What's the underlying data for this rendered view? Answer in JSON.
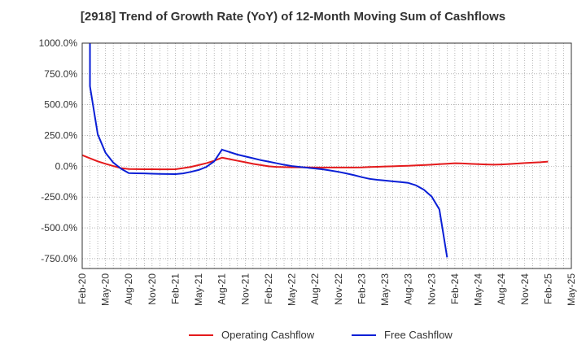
{
  "colors": {
    "operating": "#e41a1c",
    "free": "#0a1fd6",
    "grid": "#888888",
    "axis": "#333333"
  },
  "chart_data": {
    "type": "line",
    "title": "[2918]  Trend of Growth Rate (YoY) of 12-Month Moving Sum of Cashflows",
    "xlabel": "",
    "ylabel": "",
    "x_tick_labels": [
      "Feb-20",
      "May-20",
      "Aug-20",
      "Nov-20",
      "Feb-21",
      "May-21",
      "Aug-21",
      "Nov-21",
      "Feb-22",
      "May-22",
      "Aug-22",
      "Nov-22",
      "Feb-23",
      "May-23",
      "Aug-23",
      "Nov-23",
      "Feb-24",
      "May-24",
      "Aug-24",
      "Nov-24",
      "Feb-25",
      "May-25"
    ],
    "y_tick_labels": [
      "1000.0%",
      "750.0%",
      "500.0%",
      "250.0%",
      "0.0%",
      "-250.0%",
      "-500.0%",
      "-750.0%"
    ],
    "y_ticks": [
      1000,
      750,
      500,
      250,
      0,
      -250,
      -500,
      -750
    ],
    "ylim": [
      -830,
      1000
    ],
    "xlim": [
      "2020-02",
      "2025-05"
    ],
    "grid": true,
    "legend_position": "bottom-center",
    "series": [
      {
        "name": "Operating Cashflow",
        "color_key": "operating",
        "x": [
          "2020-02",
          "2020-03",
          "2020-04",
          "2020-05",
          "2020-06",
          "2020-07",
          "2020-08",
          "2020-09",
          "2020-10",
          "2020-11",
          "2020-12",
          "2021-01",
          "2021-02",
          "2021-03",
          "2021-04",
          "2021-05",
          "2021-06",
          "2021-07",
          "2021-08",
          "2021-09",
          "2021-10",
          "2021-11",
          "2021-12",
          "2022-01",
          "2022-02",
          "2022-03",
          "2022-04",
          "2022-05",
          "2022-06",
          "2022-07",
          "2022-08",
          "2022-09",
          "2022-10",
          "2022-11",
          "2022-12",
          "2023-01",
          "2023-02",
          "2023-03",
          "2023-04",
          "2023-05",
          "2023-06",
          "2023-07",
          "2023-08",
          "2023-09",
          "2023-10",
          "2023-11",
          "2023-12",
          "2024-01",
          "2024-02",
          "2024-03",
          "2024-04",
          "2024-05",
          "2024-06",
          "2024-07",
          "2024-08",
          "2024-09",
          "2024-10",
          "2024-11",
          "2024-12",
          "2025-01",
          "2025-02"
        ],
        "values": [
          90,
          65,
          40,
          20,
          2,
          -15,
          -22,
          -23,
          -24,
          -24,
          -25,
          -25,
          -24,
          -15,
          -5,
          10,
          25,
          45,
          70,
          58,
          45,
          33,
          20,
          10,
          0,
          -5,
          -7,
          -8,
          -8,
          -9,
          -10,
          -10,
          -10,
          -10,
          -10,
          -10,
          -9,
          -6,
          -4,
          -2,
          0,
          2,
          4,
          7,
          10,
          13,
          17,
          21,
          25,
          23,
          20,
          17,
          15,
          13,
          15,
          18,
          22,
          26,
          30,
          33,
          38
        ]
      },
      {
        "name": "Free Cashflow",
        "color_key": "free",
        "x": [
          "2020-03",
          "2020-03",
          "2020-04",
          "2020-05",
          "2020-06",
          "2020-07",
          "2020-08",
          "2020-09",
          "2020-10",
          "2020-11",
          "2020-12",
          "2021-01",
          "2021-02",
          "2021-03",
          "2021-04",
          "2021-05",
          "2021-06",
          "2021-07",
          "2021-08",
          "2021-09",
          "2021-10",
          "2021-11",
          "2021-12",
          "2022-01",
          "2022-02",
          "2022-03",
          "2022-04",
          "2022-05",
          "2022-06",
          "2022-07",
          "2022-08",
          "2022-09",
          "2022-10",
          "2022-11",
          "2022-12",
          "2023-01",
          "2023-02",
          "2023-03",
          "2023-04",
          "2023-05",
          "2023-06",
          "2023-07",
          "2023-08",
          "2023-09",
          "2023-10",
          "2023-11",
          "2023-12",
          "2024-01"
        ],
        "values": [
          1000,
          650,
          260,
          110,
          30,
          -20,
          -55,
          -57,
          -58,
          -60,
          -62,
          -63,
          -64,
          -58,
          -45,
          -30,
          -5,
          40,
          135,
          115,
          95,
          80,
          65,
          50,
          38,
          25,
          12,
          2,
          -5,
          -12,
          -18,
          -25,
          -35,
          -45,
          -58,
          -72,
          -88,
          -102,
          -110,
          -116,
          -122,
          -128,
          -135,
          -155,
          -190,
          -245,
          -350,
          -740
        ]
      }
    ]
  },
  "legend": {
    "operating_label": "Operating Cashflow",
    "free_label": "Free Cashflow"
  }
}
